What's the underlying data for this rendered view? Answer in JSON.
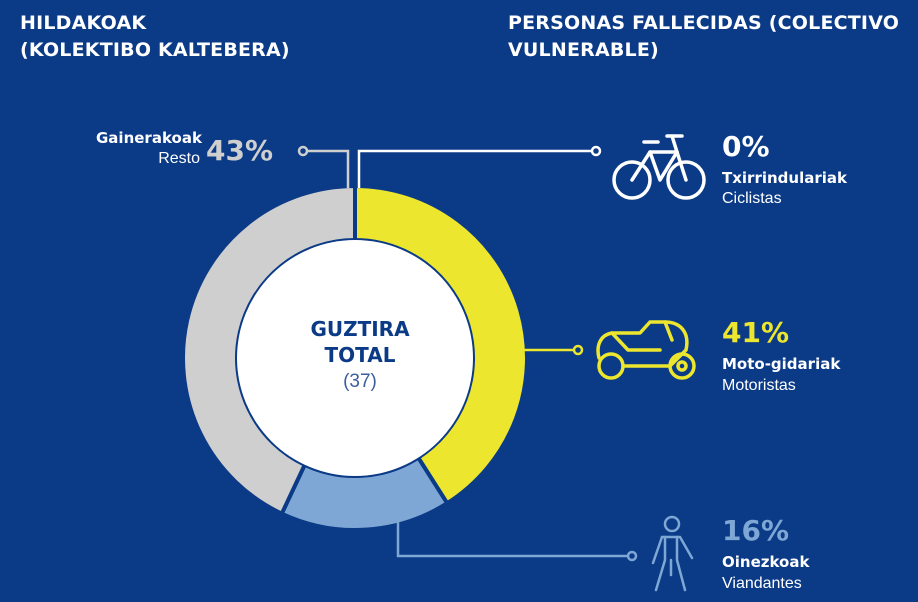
{
  "header": {
    "title_left_line1": "HILDAKOAK",
    "title_left_line2": "(KOLEKTIBO KALTEBERA)",
    "title_right_line1": "PERSONAS FALLECIDAS (COLECTIVO",
    "title_right_line2": "VULNERABLE)"
  },
  "center": {
    "label_eu": "GUZTIRA",
    "label_es": "TOTAL",
    "total": "(37)"
  },
  "colors": {
    "background": "#0b3a87",
    "resto": "#cfcfcf",
    "motoristas": "#ece62e",
    "viandantes": "#7ea7d6",
    "ciclistas": "#ffffff"
  },
  "icons": {
    "ciclistas": "bicycle-icon",
    "motoristas": "motorcycle-icon",
    "viandantes": "pedestrian-icon"
  },
  "chart_data": {
    "type": "pie",
    "total": 37,
    "categories": [
      {
        "key": "ciclistas",
        "label_eu": "Txirrindulariak",
        "label_es": "Ciclistas",
        "value": 0,
        "pct_label": "0%"
      },
      {
        "key": "motoristas",
        "label_eu": "Moto-gidariak",
        "label_es": "Motoristas",
        "value": 41,
        "pct_label": "41%"
      },
      {
        "key": "viandantes",
        "label_eu": "Oinezkoak",
        "label_es": "Viandantes",
        "value": 16,
        "pct_label": "16%"
      },
      {
        "key": "resto",
        "label_eu": "Gainerakoak",
        "label_es": "Resto",
        "value": 43,
        "pct_label": "43%"
      }
    ]
  }
}
